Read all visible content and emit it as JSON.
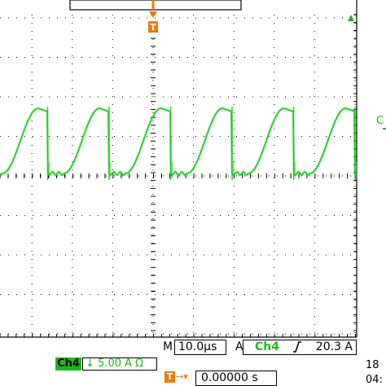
{
  "channel": {
    "label": "Ch4",
    "scale": "5.00 A",
    "coupling_icon": "down-arrow-icon",
    "impedance_symbol": "Ω",
    "color": "#1fb61f"
  },
  "timebase": {
    "mode_label": "M",
    "value": "10.0µs"
  },
  "trigger": {
    "mode_label": "A",
    "source": "Ch4",
    "slope_icon": "rising-edge-icon",
    "level": "20.3 A",
    "marker_label": "T",
    "marker_color": "#e87a14"
  },
  "position": {
    "icon": "trigger-position-icon",
    "value": "0.00000 s"
  },
  "datetime": {
    "day": "18",
    "time": "04:"
  },
  "side_label": "C",
  "waveform": {
    "color": "#22cc22",
    "grid_color": "#000000",
    "shape": "periodic current ramp",
    "cycles_visible": 6
  }
}
